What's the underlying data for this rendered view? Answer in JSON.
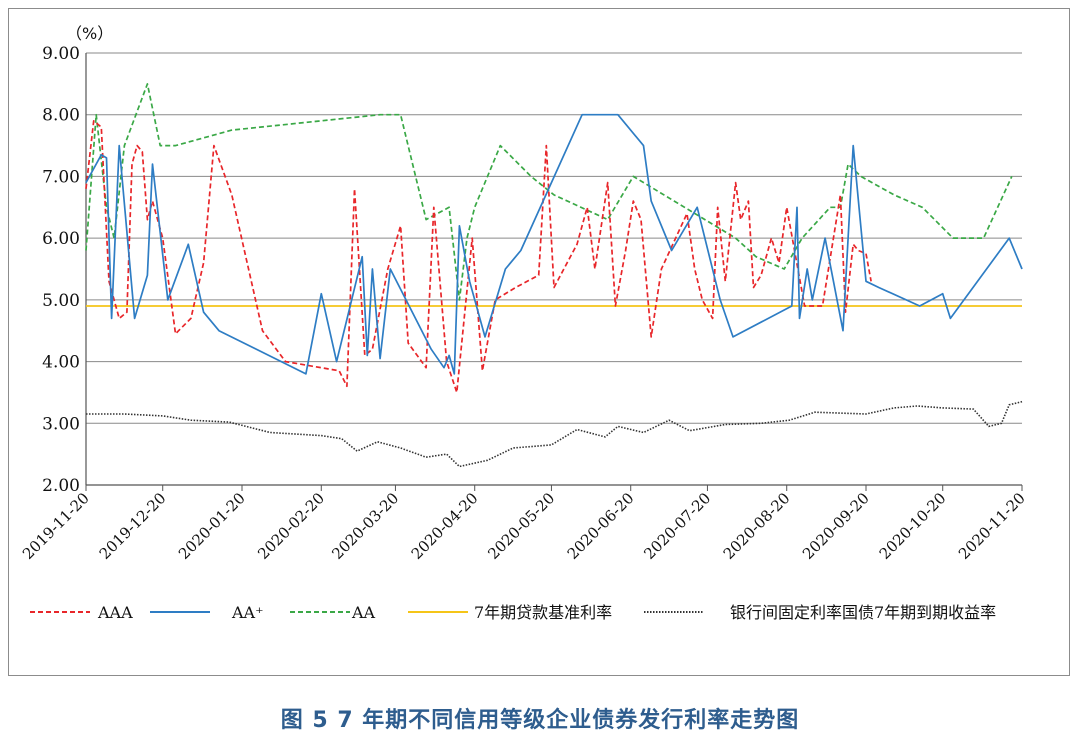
{
  "chart_data": {
    "type": "line",
    "ylabel": "（%）",
    "ylim": [
      2.0,
      9.0
    ],
    "yticks": [
      "2.00",
      "3.00",
      "4.00",
      "5.00",
      "6.00",
      "7.00",
      "8.00",
      "9.00"
    ],
    "x_ticks": [
      "2019-11-20",
      "2019-12-20",
      "2020-01-20",
      "2020-02-20",
      "2020-03-20",
      "2020-04-20",
      "2020-05-20",
      "2020-06-20",
      "2020-07-20",
      "2020-08-20",
      "2020-09-20",
      "2020-10-20",
      "2020-11-20"
    ],
    "grid": true,
    "legend_position": "bottom",
    "series": [
      {
        "name": "AAA",
        "color": "#e8262a",
        "style": "dashed",
        "points": [
          [
            "2019-11-20",
            6.8
          ],
          [
            "2019-11-23",
            7.9
          ],
          [
            "2019-11-26",
            7.8
          ],
          [
            "2019-11-29",
            5.3
          ],
          [
            "2019-12-03",
            4.7
          ],
          [
            "2019-12-06",
            4.8
          ],
          [
            "2019-12-08",
            7.2
          ],
          [
            "2019-12-10",
            7.5
          ],
          [
            "2019-12-12",
            7.4
          ],
          [
            "2019-12-14",
            6.3
          ],
          [
            "2019-12-16",
            6.6
          ],
          [
            "2019-12-20",
            6.0
          ],
          [
            "2019-12-25",
            4.45
          ],
          [
            "2019-12-31",
            4.7
          ],
          [
            "2020-01-05",
            5.6
          ],
          [
            "2020-01-09",
            7.5
          ],
          [
            "2020-01-16",
            6.7
          ],
          [
            "2020-01-28",
            4.5
          ],
          [
            "2020-02-06",
            4.0
          ],
          [
            "2020-02-20",
            3.9
          ],
          [
            "2020-02-27",
            3.85
          ],
          [
            "2020-03-01",
            3.6
          ],
          [
            "2020-03-04",
            6.8
          ],
          [
            "2020-03-08",
            4.1
          ],
          [
            "2020-03-11",
            4.2
          ],
          [
            "2020-03-17",
            5.5
          ],
          [
            "2020-03-22",
            6.2
          ],
          [
            "2020-03-25",
            4.3
          ],
          [
            "2020-04-01",
            3.9
          ],
          [
            "2020-04-04",
            6.5
          ],
          [
            "2020-04-09",
            4.0
          ],
          [
            "2020-04-13",
            3.5
          ],
          [
            "2020-04-19",
            6.0
          ],
          [
            "2020-04-23",
            3.85
          ],
          [
            "2020-04-28",
            5.0
          ],
          [
            "2020-05-06",
            5.2
          ],
          [
            "2020-05-15",
            5.4
          ],
          [
            "2020-05-18",
            7.5
          ],
          [
            "2020-05-21",
            5.2
          ],
          [
            "2020-05-30",
            5.9
          ],
          [
            "2020-06-03",
            6.5
          ],
          [
            "2020-06-06",
            5.5
          ],
          [
            "2020-06-11",
            6.9
          ],
          [
            "2020-06-14",
            4.9
          ],
          [
            "2020-06-18",
            5.8
          ],
          [
            "2020-06-21",
            6.6
          ],
          [
            "2020-06-24",
            6.3
          ],
          [
            "2020-06-28",
            4.4
          ],
          [
            "2020-07-02",
            5.5
          ],
          [
            "2020-07-12",
            6.4
          ],
          [
            "2020-07-15",
            5.5
          ],
          [
            "2020-07-18",
            5.0
          ],
          [
            "2020-07-22",
            4.7
          ],
          [
            "2020-07-24",
            6.5
          ],
          [
            "2020-07-27",
            5.3
          ],
          [
            "2020-07-31",
            6.9
          ],
          [
            "2020-08-02",
            6.3
          ],
          [
            "2020-08-05",
            6.6
          ],
          [
            "2020-08-07",
            5.2
          ],
          [
            "2020-08-10",
            5.4
          ],
          [
            "2020-08-14",
            6.0
          ],
          [
            "2020-08-17",
            5.6
          ],
          [
            "2020-08-20",
            6.5
          ],
          [
            "2020-08-27",
            4.9
          ],
          [
            "2020-09-03",
            4.9
          ],
          [
            "2020-09-10",
            6.7
          ],
          [
            "2020-09-12",
            4.8
          ],
          [
            "2020-09-15",
            5.9
          ],
          [
            "2020-09-17",
            5.8
          ],
          [
            "2020-09-20",
            5.75
          ],
          [
            "2020-09-22",
            5.3
          ]
        ]
      },
      {
        "name": "AA⁺",
        "color": "#2e7dc4",
        "style": "solid",
        "points": [
          [
            "2019-11-20",
            6.9
          ],
          [
            "2019-11-26",
            7.35
          ],
          [
            "2019-11-28",
            7.3
          ],
          [
            "2019-11-30",
            4.7
          ],
          [
            "2019-12-03",
            7.5
          ],
          [
            "2019-12-09",
            4.7
          ],
          [
            "2019-12-14",
            5.4
          ],
          [
            "2019-12-16",
            7.2
          ],
          [
            "2019-12-22",
            5.0
          ],
          [
            "2019-12-30",
            5.9
          ],
          [
            "2020-01-05",
            4.8
          ],
          [
            "2020-01-11",
            4.5
          ],
          [
            "2020-02-14",
            3.8
          ],
          [
            "2020-02-20",
            5.1
          ],
          [
            "2020-02-26",
            4.0
          ],
          [
            "2020-03-07",
            5.7
          ],
          [
            "2020-03-09",
            4.1
          ],
          [
            "2020-03-11",
            5.5
          ],
          [
            "2020-03-14",
            4.05
          ],
          [
            "2020-03-18",
            5.5
          ],
          [
            "2020-04-03",
            4.2
          ],
          [
            "2020-04-08",
            3.9
          ],
          [
            "2020-04-10",
            4.1
          ],
          [
            "2020-04-12",
            3.8
          ],
          [
            "2020-04-14",
            6.2
          ],
          [
            "2020-04-18",
            5.3
          ],
          [
            "2020-04-24",
            4.4
          ],
          [
            "2020-05-02",
            5.5
          ],
          [
            "2020-05-08",
            5.8
          ],
          [
            "2020-06-01",
            8.0
          ],
          [
            "2020-06-15",
            8.0
          ],
          [
            "2020-06-25",
            7.5
          ],
          [
            "2020-06-28",
            6.6
          ],
          [
            "2020-07-06",
            5.8
          ],
          [
            "2020-07-16",
            6.5
          ],
          [
            "2020-07-25",
            5.0
          ],
          [
            "2020-07-30",
            4.4
          ],
          [
            "2020-08-22",
            4.9
          ],
          [
            "2020-08-24",
            6.5
          ],
          [
            "2020-08-25",
            4.7
          ],
          [
            "2020-08-28",
            5.5
          ],
          [
            "2020-08-30",
            5.0
          ],
          [
            "2020-09-04",
            6.0
          ],
          [
            "2020-09-11",
            4.5
          ],
          [
            "2020-09-15",
            7.5
          ],
          [
            "2020-09-20",
            5.3
          ],
          [
            "2020-09-25",
            5.2
          ],
          [
            "2020-10-11",
            4.9
          ],
          [
            "2020-10-20",
            5.1
          ],
          [
            "2020-10-23",
            4.7
          ],
          [
            "2020-11-15",
            6.0
          ],
          [
            "2020-11-20",
            5.5
          ]
        ]
      },
      {
        "name": "AA",
        "color": "#3aa846",
        "style": "dashed",
        "points": [
          [
            "2019-11-20",
            5.8
          ],
          [
            "2019-11-24",
            8.0
          ],
          [
            "2019-11-28",
            6.5
          ],
          [
            "2019-12-01",
            6.0
          ],
          [
            "2019-12-05",
            7.5
          ],
          [
            "2019-12-14",
            8.5
          ],
          [
            "2019-12-19",
            7.5
          ],
          [
            "2019-12-25",
            7.5
          ],
          [
            "2020-01-16",
            7.75
          ],
          [
            "2020-03-14",
            8.0
          ],
          [
            "2020-03-22",
            8.0
          ],
          [
            "2020-04-01",
            6.3
          ],
          [
            "2020-04-10",
            6.5
          ],
          [
            "2020-04-14",
            5.0
          ],
          [
            "2020-04-17",
            6.0
          ],
          [
            "2020-04-20",
            6.5
          ],
          [
            "2020-04-30",
            7.5
          ],
          [
            "2020-05-12",
            7.0
          ],
          [
            "2020-05-21",
            6.7
          ],
          [
            "2020-06-11",
            6.3
          ],
          [
            "2020-06-21",
            7.0
          ],
          [
            "2020-07-31",
            6.0
          ],
          [
            "2020-08-08",
            5.7
          ],
          [
            "2020-08-19",
            5.5
          ],
          [
            "2020-08-26",
            6.0
          ],
          [
            "2020-09-06",
            6.5
          ],
          [
            "2020-09-10",
            6.5
          ],
          [
            "2020-09-13",
            7.2
          ],
          [
            "2020-09-18",
            7.0
          ],
          [
            "2020-10-01",
            6.7
          ],
          [
            "2020-10-12",
            6.5
          ],
          [
            "2020-10-24",
            6.0
          ],
          [
            "2020-11-05",
            6.0
          ],
          [
            "2020-11-16",
            7.0
          ]
        ]
      },
      {
        "name": "7年期贷款基准利率",
        "color": "#f5c518",
        "style": "solid",
        "points": [
          [
            "2019-11-20",
            4.9
          ],
          [
            "2020-11-20",
            4.9
          ]
        ]
      },
      {
        "name": "银行间固定利率国债7年期到期收益率",
        "color": "#333333",
        "style": "dotted",
        "points": [
          [
            "2019-11-20",
            3.15
          ],
          [
            "2019-12-05",
            3.15
          ],
          [
            "2019-12-20",
            3.12
          ],
          [
            "2019-12-31",
            3.05
          ],
          [
            "2020-01-15",
            3.02
          ],
          [
            "2020-01-31",
            2.85
          ],
          [
            "2020-02-20",
            2.8
          ],
          [
            "2020-02-28",
            2.75
          ],
          [
            "2020-03-05",
            2.55
          ],
          [
            "2020-03-13",
            2.7
          ],
          [
            "2020-03-22",
            2.6
          ],
          [
            "2020-04-01",
            2.45
          ],
          [
            "2020-04-09",
            2.5
          ],
          [
            "2020-04-14",
            2.3
          ],
          [
            "2020-04-25",
            2.4
          ],
          [
            "2020-05-05",
            2.6
          ],
          [
            "2020-05-20",
            2.65
          ],
          [
            "2020-05-30",
            2.9
          ],
          [
            "2020-06-10",
            2.78
          ],
          [
            "2020-06-15",
            2.95
          ],
          [
            "2020-06-25",
            2.85
          ],
          [
            "2020-07-05",
            3.05
          ],
          [
            "2020-07-13",
            2.88
          ],
          [
            "2020-07-27",
            2.98
          ],
          [
            "2020-08-10",
            3.0
          ],
          [
            "2020-08-21",
            3.05
          ],
          [
            "2020-08-31",
            3.18
          ],
          [
            "2020-09-20",
            3.15
          ],
          [
            "2020-10-01",
            3.25
          ],
          [
            "2020-10-10",
            3.28
          ],
          [
            "2020-10-20",
            3.25
          ],
          [
            "2020-11-01",
            3.23
          ],
          [
            "2020-11-07",
            2.95
          ],
          [
            "2020-11-12",
            3.0
          ],
          [
            "2020-11-15",
            3.3
          ],
          [
            "2020-11-20",
            3.35
          ]
        ]
      }
    ]
  },
  "caption": "图 5  7 年期不同信用等级企业债券发行利率走势图"
}
